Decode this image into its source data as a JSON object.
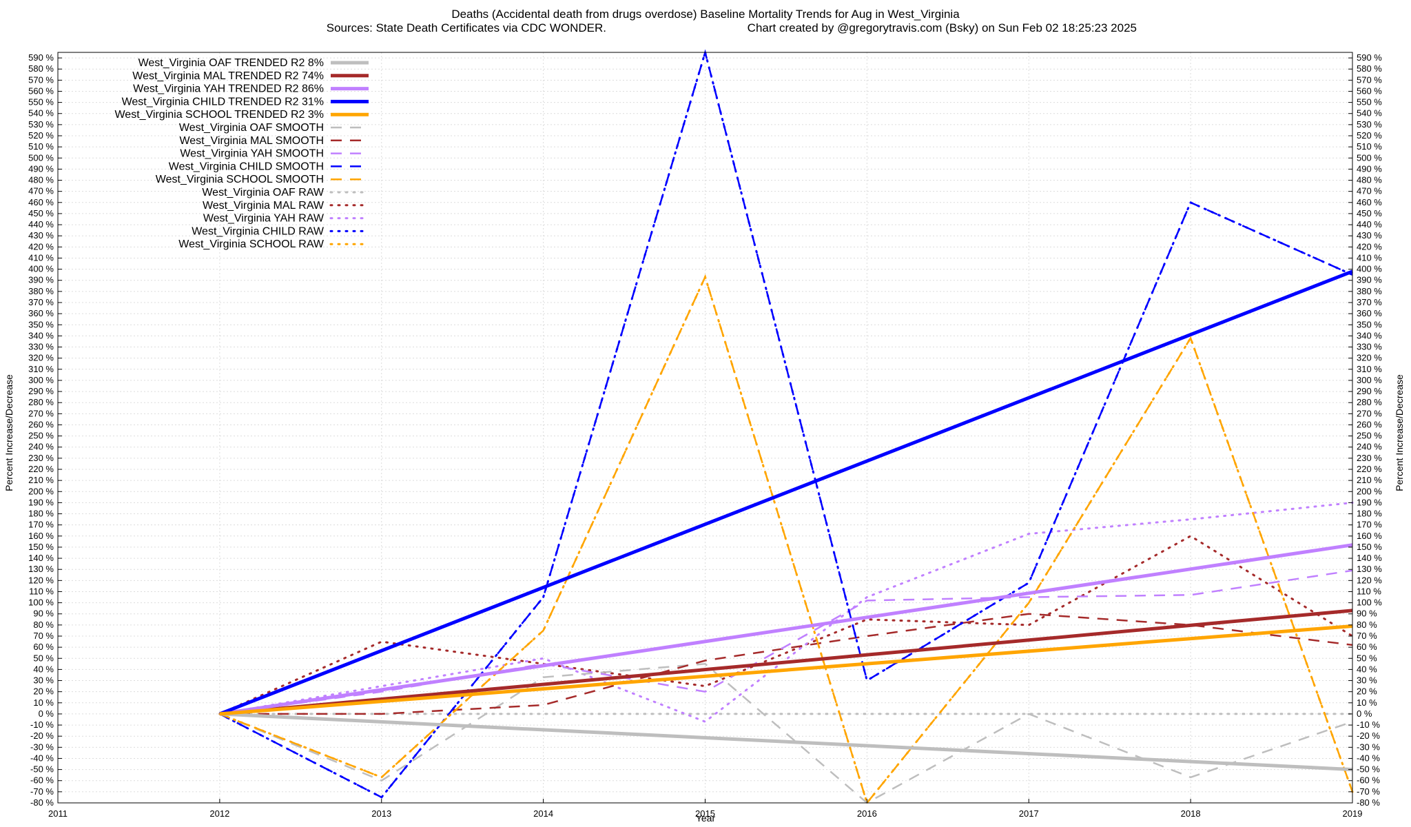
{
  "chart_data": {
    "type": "line",
    "title": "Deaths (Accidental death from drugs overdose)  Baseline Mortality Trends for Aug in West_Virginia",
    "subtitle_left": "Sources: State Death Certificates via CDC WONDER.",
    "subtitle_right": "Chart created by @gregorytravis.com (Bsky) on Sun Feb 02 18:25:23 2025",
    "xlabel": "Year",
    "ylabel": "Percent Increase/Decrease",
    "ylabel_right": "Percent Increase/Decrease",
    "xlim": [
      2011,
      2019
    ],
    "ylim": [
      -80,
      595
    ],
    "x_ticks": [
      2011,
      2012,
      2013,
      2014,
      2015,
      2016,
      2017,
      2018,
      2019
    ],
    "y_tick_step": 10,
    "y_tick_suffix": " %",
    "grid": true,
    "legend_position": "top-left",
    "series": [
      {
        "name": "West_Virginia OAF TRENDED R2  8%",
        "style": "solid",
        "color": "#bebebe",
        "x": [
          2012,
          2019
        ],
        "y": [
          0,
          -50
        ]
      },
      {
        "name": "West_Virginia MAL TRENDED R2  74%",
        "style": "solid",
        "color": "#a52a2a",
        "x": [
          2012,
          2019
        ],
        "y": [
          0,
          93
        ]
      },
      {
        "name": "West_Virginia YAH TRENDED R2  86%",
        "style": "solid",
        "color": "#c080ff",
        "x": [
          2012,
          2019
        ],
        "y": [
          0,
          152
        ]
      },
      {
        "name": "West_Virginia CHILD TRENDED R2  31%",
        "style": "solid",
        "color": "#0000ff",
        "x": [
          2012,
          2019
        ],
        "y": [
          0,
          398
        ]
      },
      {
        "name": "West_Virginia SCHOOL TRENDED R2  3%",
        "style": "solid",
        "color": "#ffa500",
        "x": [
          2012,
          2019
        ],
        "y": [
          0,
          79
        ]
      },
      {
        "name": "West_Virginia OAF SMOOTH",
        "style": "dashed",
        "color": "#bebebe",
        "x": [
          2012,
          2013,
          2014,
          2015,
          2016,
          2017,
          2018,
          2019
        ],
        "y": [
          0,
          -60,
          33,
          45,
          -80,
          0,
          -57,
          -7
        ]
      },
      {
        "name": "West_Virginia MAL SMOOTH",
        "style": "dashed",
        "color": "#a52a2a",
        "x": [
          2012,
          2013,
          2014,
          2015,
          2016,
          2017,
          2018,
          2019
        ],
        "y": [
          0,
          0,
          8,
          48,
          70,
          90,
          80,
          62
        ]
      },
      {
        "name": "West_Virginia YAH SMOOTH",
        "style": "dashed",
        "color": "#c080ff",
        "x": [
          2012,
          2013,
          2014,
          2015,
          2016,
          2017,
          2018,
          2019
        ],
        "y": [
          0,
          20,
          45,
          20,
          102,
          105,
          107,
          129
        ]
      },
      {
        "name": "West_Virginia CHILD SMOOTH",
        "style": "dashed",
        "color": "#0000ff",
        "x": [
          2012,
          2013,
          2014,
          2015,
          2016,
          2017,
          2018,
          2019
        ],
        "y": [
          0,
          -75,
          105,
          595,
          30,
          118,
          460,
          395
        ]
      },
      {
        "name": "West_Virginia SCHOOL SMOOTH",
        "style": "dashed",
        "color": "#ffa500",
        "x": [
          2012,
          2013,
          2014,
          2015,
          2016,
          2017,
          2018,
          2019
        ],
        "y": [
          0,
          -57,
          75,
          393,
          -80,
          100,
          338,
          -70
        ]
      },
      {
        "name": "West_Virginia OAF RAW",
        "style": "dotted",
        "color": "#bebebe",
        "x": [
          2012,
          2013,
          2014,
          2015,
          2016,
          2017,
          2018,
          2019
        ],
        "y": [
          0,
          0,
          0,
          0,
          0,
          0,
          0,
          0
        ]
      },
      {
        "name": "West_Virginia MAL RAW",
        "style": "dotted",
        "color": "#a52a2a",
        "x": [
          2012,
          2013,
          2014,
          2015,
          2016,
          2017,
          2018,
          2019
        ],
        "y": [
          0,
          65,
          45,
          25,
          85,
          80,
          160,
          70
        ]
      },
      {
        "name": "West_Virginia YAH RAW",
        "style": "dotted",
        "color": "#c080ff",
        "x": [
          2012,
          2013,
          2014,
          2015,
          2016,
          2017,
          2018,
          2019
        ],
        "y": [
          0,
          25,
          50,
          -7,
          105,
          162,
          175,
          190
        ]
      },
      {
        "name": "West_Virginia CHILD RAW",
        "style": "dotted",
        "color": "#0000ff",
        "x": [
          2012,
          2013,
          2014,
          2015,
          2016,
          2017,
          2018,
          2019
        ],
        "y": [
          0,
          -75,
          105,
          595,
          30,
          118,
          460,
          395
        ]
      },
      {
        "name": "West_Virginia SCHOOL RAW",
        "style": "dotted",
        "color": "#ffa500",
        "x": [
          2012,
          2013,
          2014,
          2015,
          2016,
          2017,
          2018,
          2019
        ],
        "y": [
          0,
          -57,
          75,
          393,
          -80,
          100,
          338,
          -70
        ]
      }
    ]
  }
}
